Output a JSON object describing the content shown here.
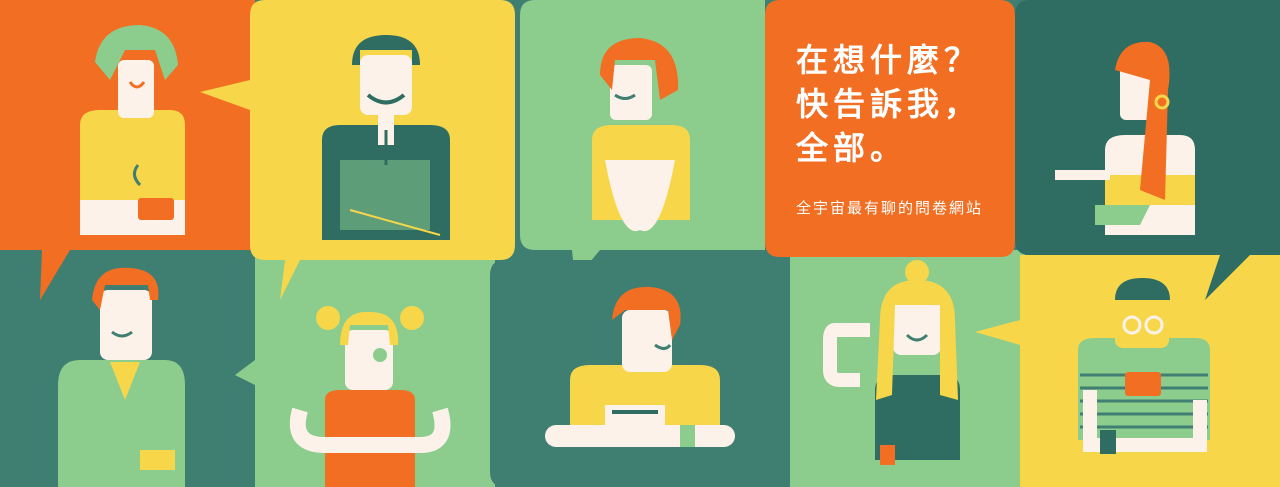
{
  "banner": {
    "headline": [
      "在想什麼？",
      "快告訴我，",
      "全部。"
    ],
    "tagline": "全宇宙最有聊的問卷網站"
  },
  "colors": {
    "orange": "#f26e22",
    "yellow": "#f7d64a",
    "light_green": "#8ccd8d",
    "dark_teal": "#3f7f72",
    "white": "#fdf2ea",
    "skin": "#fdf2ea"
  },
  "illustrations": [
    "person-green-hair-holding-cup",
    "person-with-vest-smiling",
    "person-hands-together",
    "person-red-hair-with-earring",
    "person-red-hair-in-jacket",
    "girl-with-pigtails",
    "person-at-laptop",
    "person-blonde-long-hair",
    "person-with-glasses-holding-cup"
  ]
}
